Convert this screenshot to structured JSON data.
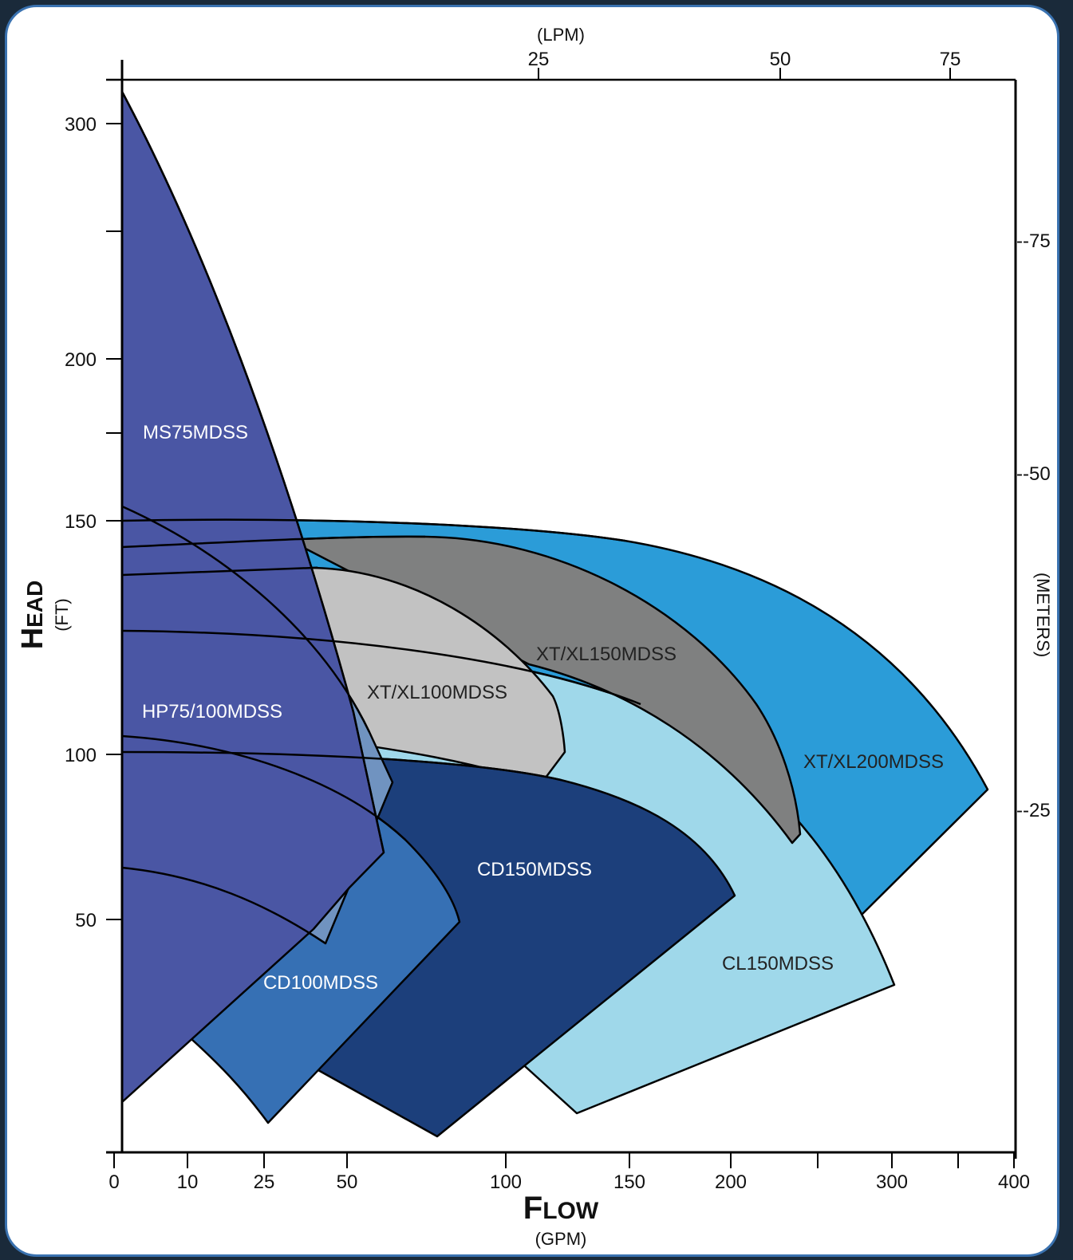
{
  "chart_data": {
    "type": "area",
    "title": "",
    "x_axis": {
      "title_cap": "F",
      "title_rest": "LOW",
      "unit": "(GPM)",
      "ticks": [
        "0",
        "10",
        "25",
        "50",
        "100",
        "150",
        "200",
        "300",
        "400"
      ]
    },
    "x_top_axis": {
      "unit": "(LPM)",
      "ticks": [
        "25",
        "50",
        "75"
      ]
    },
    "y_axis": {
      "title_cap": "H",
      "title_rest": "EAD",
      "unit": "(FT)",
      "ticks": [
        "50",
        "100",
        "150",
        "200",
        "300"
      ]
    },
    "y_right_axis": {
      "unit": "(METERS)",
      "ticks": [
        "--25",
        "--50",
        "--75"
      ]
    },
    "series": [
      {
        "name": "XT/XL200MDSS",
        "color": "#2b9cd8",
        "max_head_ft": 150,
        "max_flow_gpm": 380
      },
      {
        "name": "CL150MDSS",
        "color": "#9fd8ea",
        "max_head_ft": 128,
        "max_flow_gpm": 300
      },
      {
        "name": "XT/XL150MDSS",
        "color": "#7f8080",
        "max_head_ft": 146,
        "max_flow_gpm": 225
      },
      {
        "name": "XT/XL100MDSS",
        "color": "#c2c2c2",
        "max_head_ft": 140,
        "max_flow_gpm": 125
      },
      {
        "name": "CD150MDSS",
        "color": "#1c3f7b",
        "max_head_ft": 101,
        "max_flow_gpm": 200
      },
      {
        "name": "CD100MDSS",
        "color": "#3670b4",
        "max_head_ft": 105,
        "max_flow_gpm": 75
      },
      {
        "name": "HP75/100MDSS",
        "color": "#7093c0",
        "max_head_ft": 153,
        "max_flow_gpm": 60
      },
      {
        "name": "MS75MDSS",
        "color": "#4a56a4",
        "max_head_ft": 310,
        "max_flow_gpm": 55
      }
    ]
  }
}
